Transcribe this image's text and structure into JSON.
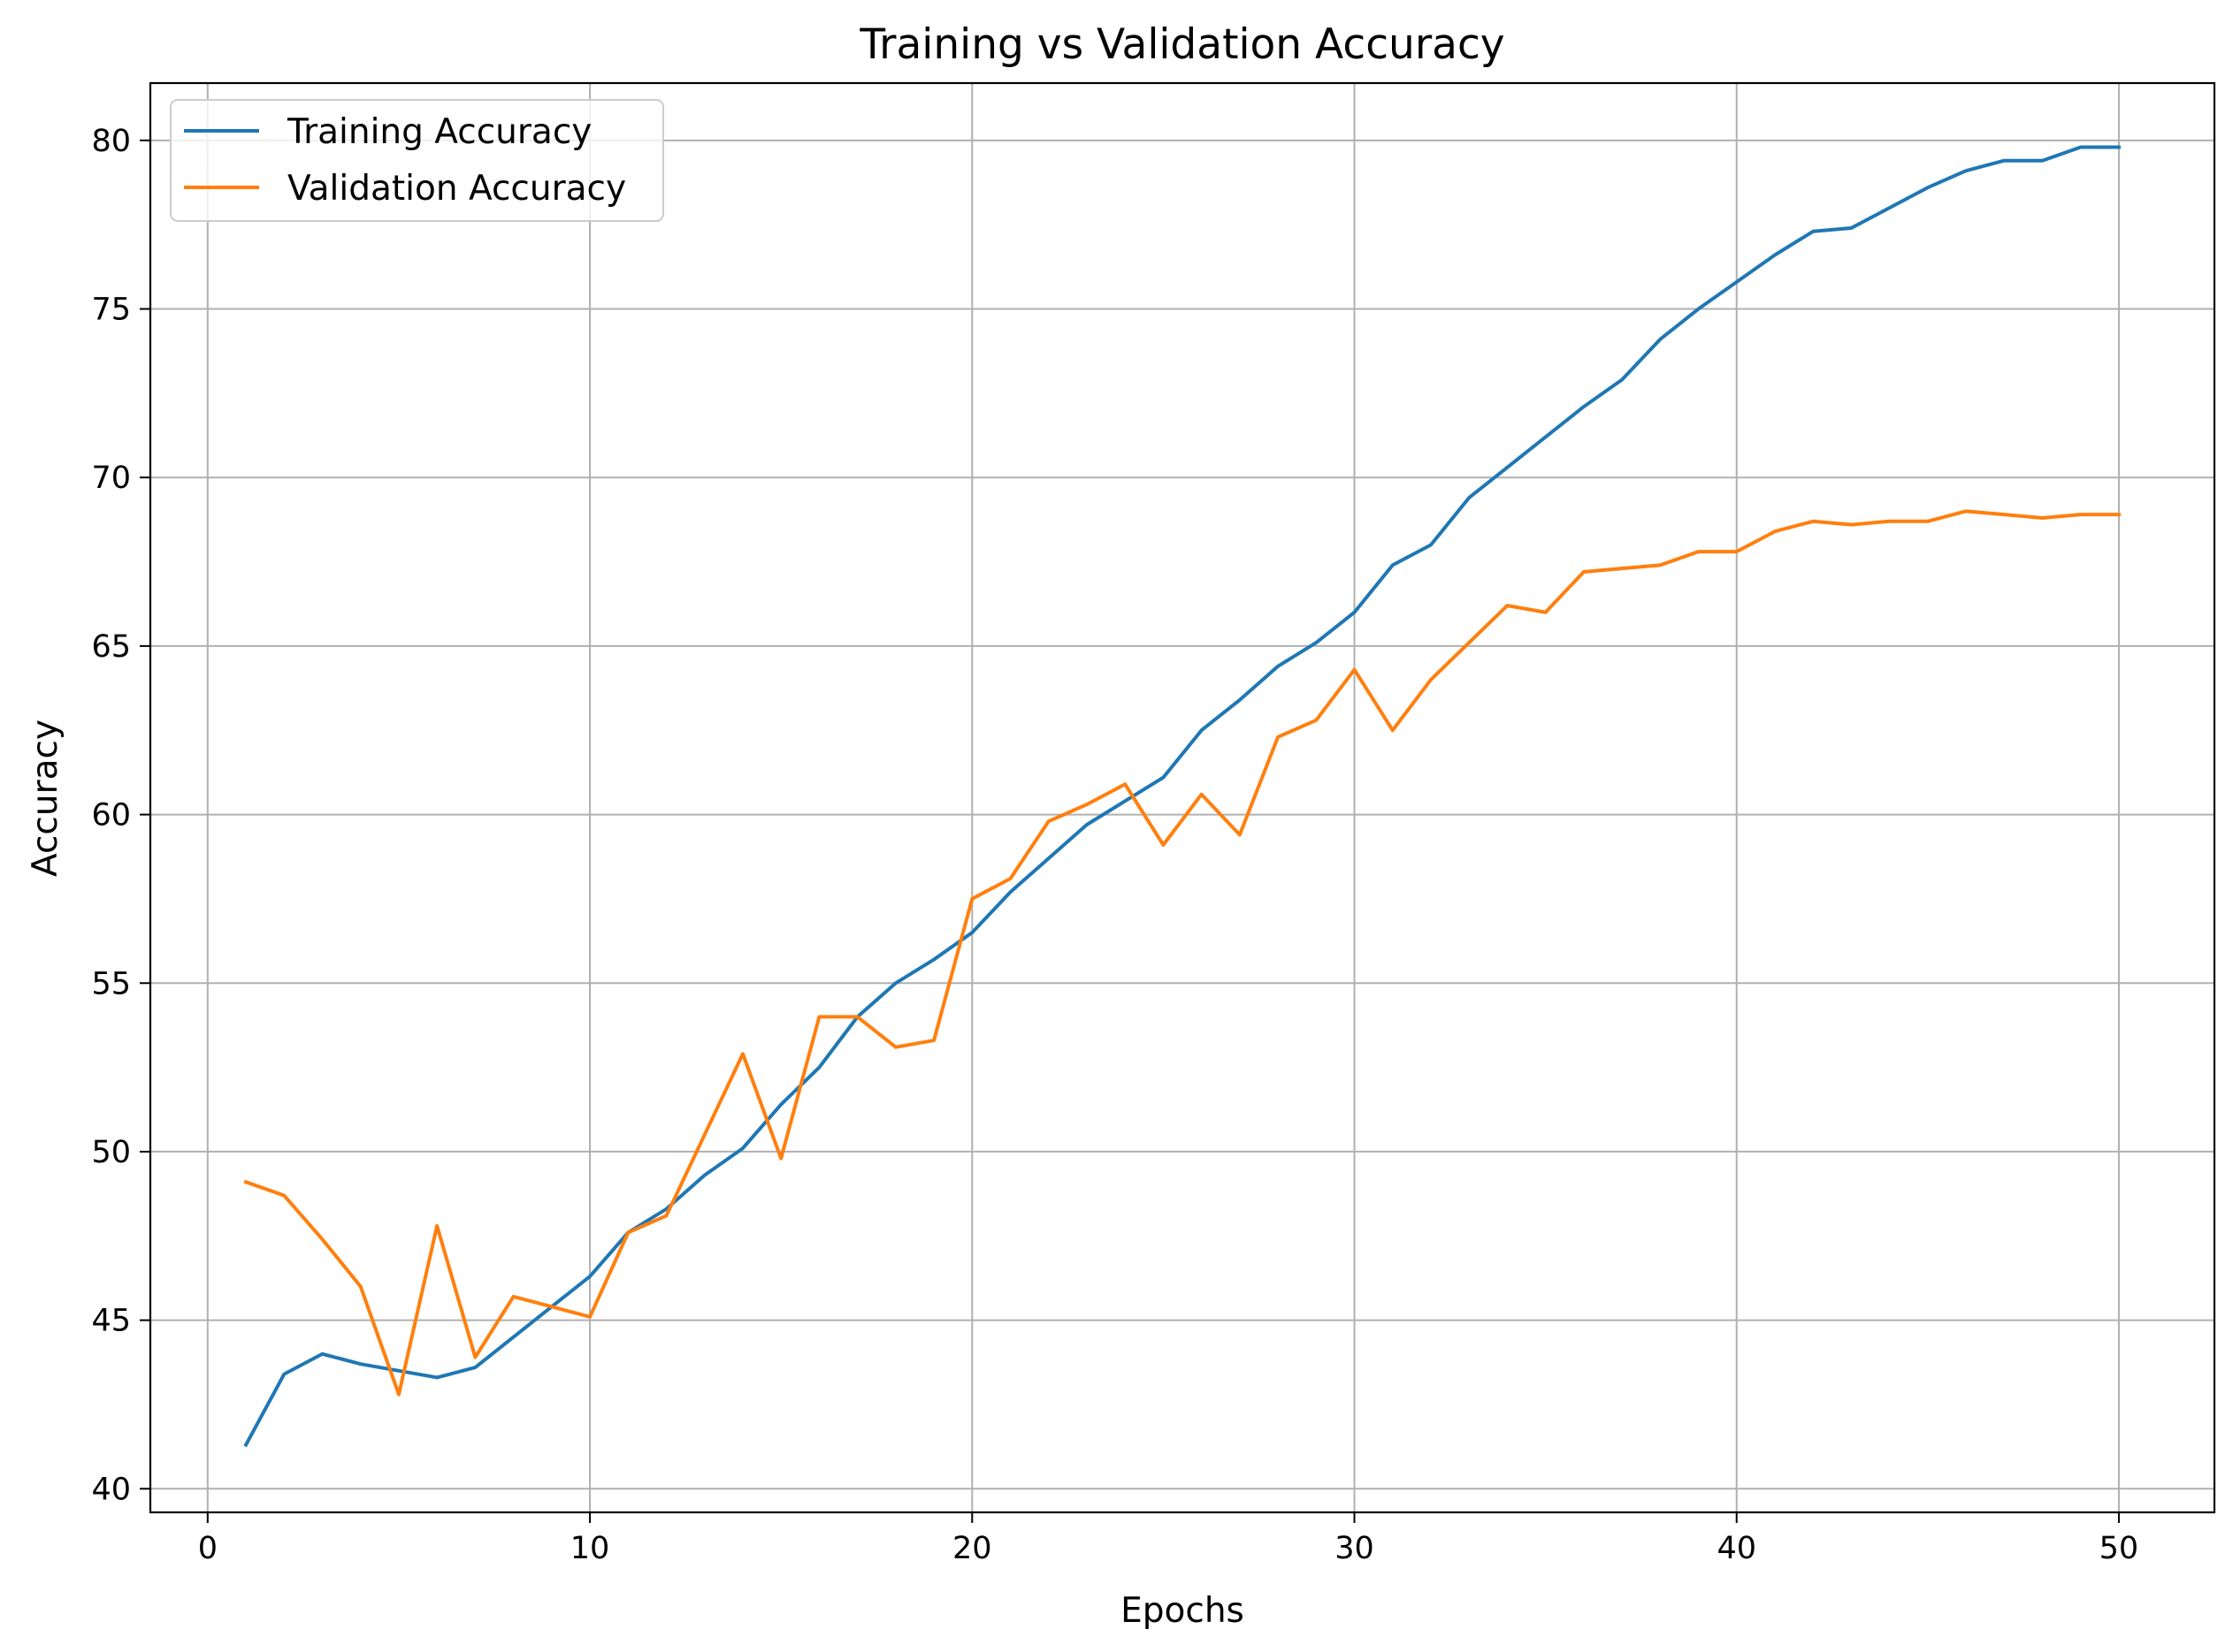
{
  "chart_data": {
    "type": "line",
    "title": "Training vs Validation Accuracy",
    "xlabel": "Epochs",
    "ylabel": "Accuracy",
    "xlim": [
      -1.5,
      52.5
    ],
    "ylim": [
      39.3,
      81.7
    ],
    "x_ticks": [
      0,
      10,
      20,
      30,
      40,
      50
    ],
    "y_ticks": [
      40,
      45,
      50,
      55,
      60,
      65,
      70,
      75,
      80
    ],
    "grid": true,
    "legend_position": "top-left",
    "x": [
      1,
      2,
      3,
      4,
      5,
      6,
      7,
      8,
      9,
      10,
      11,
      12,
      13,
      14,
      15,
      16,
      17,
      18,
      19,
      20,
      21,
      22,
      23,
      24,
      25,
      26,
      27,
      28,
      29,
      30,
      31,
      32,
      33,
      34,
      35,
      36,
      37,
      38,
      39,
      40,
      41,
      42,
      43,
      44,
      45,
      46,
      47,
      48,
      49,
      50
    ],
    "series": [
      {
        "name": "Training Accuracy",
        "color": "#1f77b4",
        "values": [
          41.3,
          43.4,
          44.0,
          43.7,
          43.5,
          43.3,
          43.6,
          44.5,
          45.4,
          46.3,
          47.6,
          48.3,
          49.3,
          50.1,
          51.4,
          52.5,
          54.0,
          55.0,
          55.7,
          56.5,
          57.7,
          58.7,
          59.7,
          60.4,
          61.1,
          62.5,
          63.4,
          64.4,
          65.1,
          66.0,
          67.4,
          68.0,
          69.4,
          70.3,
          71.2,
          72.1,
          72.9,
          74.1,
          75.0,
          75.8,
          76.6,
          77.3,
          77.4,
          78.0,
          78.6,
          79.1,
          79.4,
          79.4,
          79.8,
          79.8
        ]
      },
      {
        "name": "Validation Accuracy",
        "color": "#ff7f0e",
        "values": [
          49.1,
          48.7,
          47.4,
          46.0,
          42.8,
          47.8,
          43.9,
          45.7,
          45.4,
          45.1,
          47.6,
          48.1,
          50.5,
          52.9,
          49.8,
          54.0,
          54.0,
          53.1,
          53.3,
          57.5,
          58.1,
          59.8,
          60.3,
          60.9,
          59.1,
          60.6,
          59.4,
          62.3,
          62.8,
          64.3,
          62.5,
          64.0,
          65.1,
          66.2,
          66.0,
          67.2,
          67.3,
          67.4,
          67.8,
          67.8,
          68.4,
          68.7,
          68.6,
          68.7,
          68.7,
          69.0,
          68.9,
          68.8,
          68.9,
          68.9
        ]
      }
    ]
  }
}
